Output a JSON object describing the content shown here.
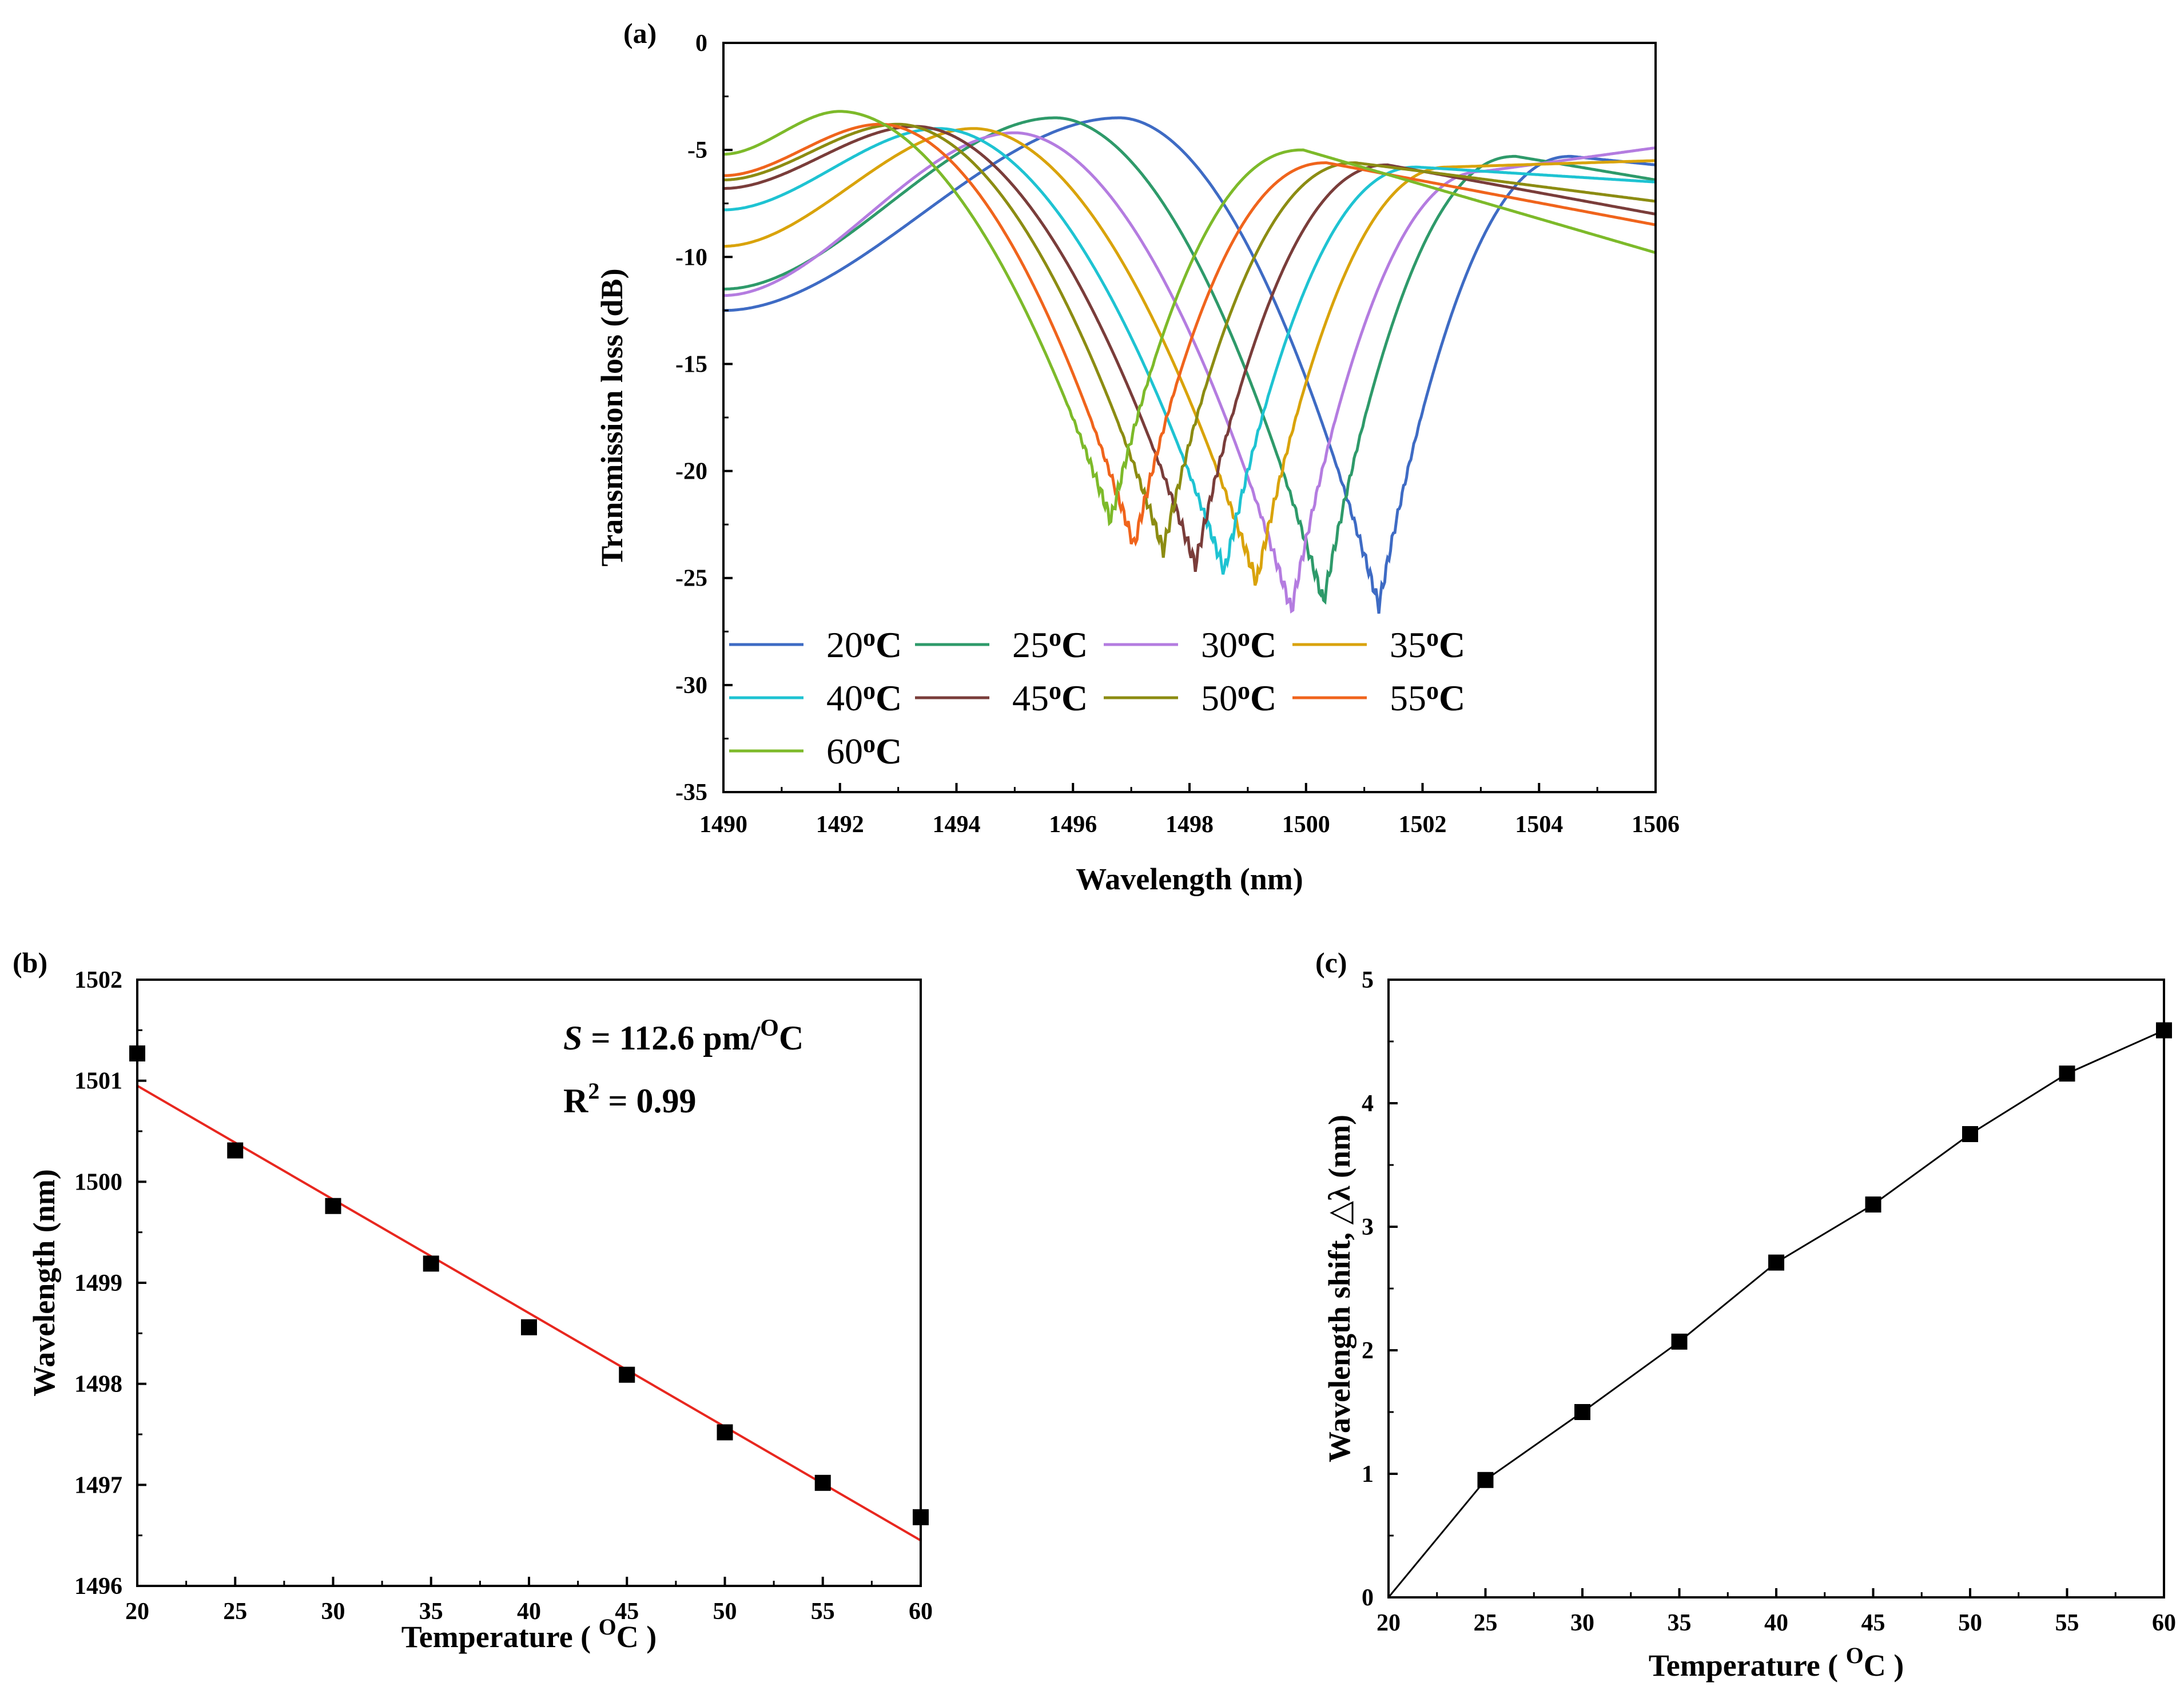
{
  "chart_data": [
    {
      "panel": "(a)",
      "type": "line",
      "xlabel": "Wavelength (nm)",
      "ylabel": "Transmission loss (dB)",
      "xlim": [
        1490,
        1506
      ],
      "ylim": [
        -35,
        0
      ],
      "xticks": [
        "1490",
        "1492",
        "1494",
        "1496",
        "1498",
        "1500",
        "1502",
        "1504",
        "1506"
      ],
      "yticks": [
        "0",
        "-5",
        "-10",
        "-15",
        "-20",
        "-25",
        "-30",
        "-35"
      ],
      "legend_position": "lower-left",
      "series": [
        {
          "name": "20",
          "unit": "oC",
          "color": "#3E6BC4",
          "dip_wavelength": 1501.25,
          "dip_depth": -26.3,
          "peak_wavelength": 1496.8,
          "peak_level": -3.5,
          "start_level": -12.5,
          "end_level": -5.7
        },
        {
          "name": "25",
          "unit": "oC",
          "color": "#2E9A6A",
          "dip_wavelength": 1500.3,
          "dip_depth": -26.1,
          "peak_wavelength": 1495.7,
          "peak_level": -3.5,
          "start_level": -11.5,
          "end_level": -6.4
        },
        {
          "name": "30",
          "unit": "oC",
          "color": "#B47CE0",
          "dip_wavelength": 1499.75,
          "dip_depth": -26.5,
          "peak_wavelength": 1495.0,
          "peak_level": -4.2,
          "start_level": -11.8,
          "end_level": -4.9
        },
        {
          "name": "35",
          "unit": "oC",
          "color": "#D9A30B",
          "dip_wavelength": 1499.15,
          "dip_depth": -25.2,
          "peak_wavelength": 1494.3,
          "peak_level": -4.0,
          "start_level": -9.5,
          "end_level": -5.5
        },
        {
          "name": "40",
          "unit": "oC",
          "color": "#1EC3D2",
          "dip_wavelength": 1498.6,
          "dip_depth": -24.7,
          "peak_wavelength": 1493.7,
          "peak_level": -4.0,
          "start_level": -7.8,
          "end_level": -6.5
        },
        {
          "name": "45",
          "unit": "oC",
          "color": "#7A3D3A",
          "dip_wavelength": 1498.1,
          "dip_depth": -24.4,
          "peak_wavelength": 1493.3,
          "peak_level": -3.9,
          "start_level": -6.8,
          "end_level": -8.0
        },
        {
          "name": "50",
          "unit": "oC",
          "color": "#8C8C12",
          "dip_wavelength": 1497.55,
          "dip_depth": -23.7,
          "peak_wavelength": 1493.0,
          "peak_level": -3.8,
          "start_level": -6.4,
          "end_level": -7.4
        },
        {
          "name": "55",
          "unit": "oC",
          "color": "#F0641C",
          "dip_wavelength": 1497.05,
          "dip_depth": -23.5,
          "peak_wavelength": 1492.7,
          "peak_level": -3.8,
          "start_level": -6.2,
          "end_level": -8.5
        },
        {
          "name": "60",
          "unit": "oC",
          "color": "#7DBA2A",
          "dip_wavelength": 1496.65,
          "dip_depth": -22.3,
          "peak_wavelength": 1492.0,
          "peak_level": -3.2,
          "start_level": -5.2,
          "end_level": -9.8
        }
      ]
    },
    {
      "panel": "(b)",
      "type": "scatter",
      "xlabel": "Temperature ( ",
      "xlabel_unit_sup": "O",
      "xlabel_unit": "C )",
      "ylabel": "Wavelength (nm)",
      "xlim": [
        20,
        60
      ],
      "ylim": [
        1496,
        1502
      ],
      "xticks": [
        "20",
        "25",
        "30",
        "35",
        "40",
        "45",
        "50",
        "55",
        "60"
      ],
      "yticks": [
        "1496",
        "1497",
        "1498",
        "1499",
        "1500",
        "1501",
        "1502"
      ],
      "x": [
        20,
        25,
        30,
        35,
        40,
        45,
        50,
        55,
        60
      ],
      "y": [
        1501.27,
        1500.31,
        1499.76,
        1499.19,
        1498.56,
        1498.09,
        1497.52,
        1497.02,
        1496.68
      ],
      "fit": {
        "type": "linear",
        "color": "#E8271F",
        "x": [
          20,
          60
        ],
        "y": [
          1500.95,
          1496.45
        ]
      },
      "annotation": {
        "S_symbol": "S",
        "S_text": " = 112.6 pm/",
        "S_sup": "O",
        "S_unit": "C",
        "R_text": "R",
        "R_sup": "2",
        "R_value": " = 0.99"
      }
    },
    {
      "panel": "(c)",
      "type": "line",
      "xlabel": "Temperature ( ",
      "xlabel_unit_sup": "O",
      "xlabel_unit": "C )",
      "ylabel": "Wavelength shift, △λ (nm)",
      "xlim": [
        20,
        60
      ],
      "ylim": [
        0,
        5
      ],
      "xticks": [
        "20",
        "25",
        "30",
        "35",
        "40",
        "45",
        "50",
        "55",
        "60"
      ],
      "yticks": [
        "0",
        "1",
        "2",
        "3",
        "4",
        "5"
      ],
      "x": [
        20,
        25,
        30,
        35,
        40,
        45,
        50,
        55,
        60
      ],
      "y": [
        0,
        0.95,
        1.5,
        2.07,
        2.71,
        3.18,
        3.75,
        4.24,
        4.59
      ],
      "marker_from_index": 1
    }
  ]
}
